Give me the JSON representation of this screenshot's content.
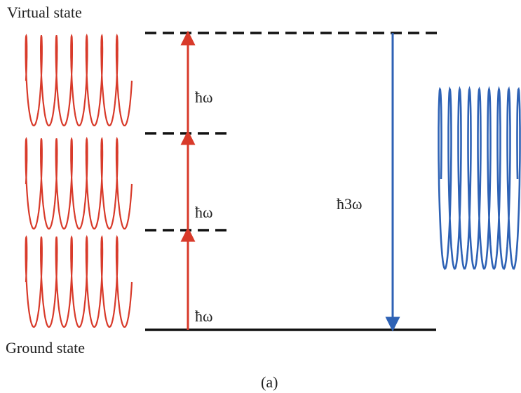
{
  "levels": {
    "virtual": "Virtual state",
    "ground": "Ground state"
  },
  "photons": [
    "ħω",
    "ħω",
    "ħω"
  ],
  "emitted": "ħ3ω",
  "caption": "(a)"
}
